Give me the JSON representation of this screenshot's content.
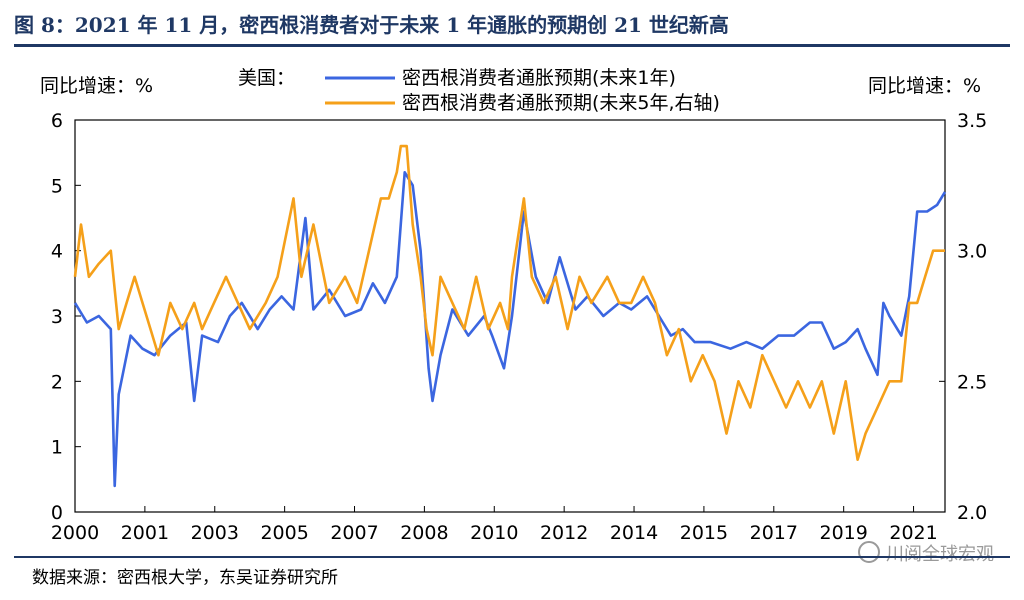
{
  "title": "图 8：2021 年 11 月，密西根消费者对于未来 1 年通胀的预期创 21 世纪新高",
  "source": "数据来源：密西根大学，东吴证券研究所",
  "watermark": "川阅全球宏观",
  "chart_data": {
    "type": "line",
    "region_label": "美国：",
    "left_axis_label": "同比增速：%",
    "right_axis_label": "同比增速：%",
    "y_left": {
      "ylim": [
        0,
        6
      ],
      "ticks": [
        "0",
        "1",
        "2",
        "3",
        "4",
        "5",
        "6"
      ]
    },
    "y_right": {
      "ylim": [
        2.0,
        3.5
      ],
      "ticks": [
        "2.0",
        "2.5",
        "3.0",
        "3.5"
      ]
    },
    "x_ticks": [
      "2000",
      "2001",
      "2003",
      "2005",
      "2007",
      "2008",
      "2010",
      "2012",
      "2014",
      "2015",
      "2017",
      "2019",
      "2021"
    ],
    "x_range": [
      2000.0,
      2021.9
    ],
    "grid": false,
    "legend": "top-center",
    "series": [
      {
        "name": "密西根消费者通胀预期(未来1年)",
        "axis": "left",
        "color": "#3b66e0",
        "points": [
          [
            2000.0,
            3.2
          ],
          [
            2000.3,
            2.9
          ],
          [
            2000.6,
            3.0
          ],
          [
            2000.9,
            2.8
          ],
          [
            2001.0,
            0.4
          ],
          [
            2001.1,
            1.8
          ],
          [
            2001.4,
            2.7
          ],
          [
            2001.7,
            2.5
          ],
          [
            2002.0,
            2.4
          ],
          [
            2002.4,
            2.7
          ],
          [
            2002.8,
            2.9
          ],
          [
            2003.0,
            1.7
          ],
          [
            2003.2,
            2.7
          ],
          [
            2003.6,
            2.6
          ],
          [
            2003.9,
            3.0
          ],
          [
            2004.2,
            3.2
          ],
          [
            2004.6,
            2.8
          ],
          [
            2004.9,
            3.1
          ],
          [
            2005.2,
            3.3
          ],
          [
            2005.5,
            3.1
          ],
          [
            2005.8,
            4.5
          ],
          [
            2006.0,
            3.1
          ],
          [
            2006.4,
            3.4
          ],
          [
            2006.8,
            3.0
          ],
          [
            2007.2,
            3.1
          ],
          [
            2007.5,
            3.5
          ],
          [
            2007.8,
            3.2
          ],
          [
            2008.1,
            3.6
          ],
          [
            2008.3,
            5.2
          ],
          [
            2008.5,
            5.0
          ],
          [
            2008.7,
            4.0
          ],
          [
            2008.9,
            2.2
          ],
          [
            2009.0,
            1.7
          ],
          [
            2009.2,
            2.4
          ],
          [
            2009.5,
            3.1
          ],
          [
            2009.9,
            2.7
          ],
          [
            2010.3,
            3.0
          ],
          [
            2010.5,
            2.7
          ],
          [
            2010.8,
            2.2
          ],
          [
            2011.0,
            3.0
          ],
          [
            2011.3,
            4.6
          ],
          [
            2011.6,
            3.6
          ],
          [
            2011.9,
            3.2
          ],
          [
            2012.2,
            3.9
          ],
          [
            2012.6,
            3.1
          ],
          [
            2012.9,
            3.3
          ],
          [
            2013.3,
            3.0
          ],
          [
            2013.7,
            3.2
          ],
          [
            2014.0,
            3.1
          ],
          [
            2014.4,
            3.3
          ],
          [
            2014.8,
            2.9
          ],
          [
            2015.0,
            2.7
          ],
          [
            2015.3,
            2.8
          ],
          [
            2015.6,
            2.6
          ],
          [
            2016.0,
            2.6
          ],
          [
            2016.5,
            2.5
          ],
          [
            2016.9,
            2.6
          ],
          [
            2017.3,
            2.5
          ],
          [
            2017.7,
            2.7
          ],
          [
            2018.1,
            2.7
          ],
          [
            2018.5,
            2.9
          ],
          [
            2018.8,
            2.9
          ],
          [
            2019.1,
            2.5
          ],
          [
            2019.4,
            2.6
          ],
          [
            2019.7,
            2.8
          ],
          [
            2019.9,
            2.5
          ],
          [
            2020.2,
            2.1
          ],
          [
            2020.35,
            3.2
          ],
          [
            2020.5,
            3.0
          ],
          [
            2020.8,
            2.7
          ],
          [
            2021.0,
            3.3
          ],
          [
            2021.2,
            4.6
          ],
          [
            2021.45,
            4.6
          ],
          [
            2021.7,
            4.7
          ],
          [
            2021.9,
            4.9
          ]
        ]
      },
      {
        "name": "密西根消费者通胀预期(未来5年,右轴)",
        "axis": "right",
        "color": "#f5a01a",
        "points": [
          [
            2000.0,
            2.9
          ],
          [
            2000.15,
            3.1
          ],
          [
            2000.35,
            2.9
          ],
          [
            2000.6,
            2.95
          ],
          [
            2000.9,
            3.0
          ],
          [
            2001.1,
            2.7
          ],
          [
            2001.3,
            2.8
          ],
          [
            2001.5,
            2.9
          ],
          [
            2001.7,
            2.8
          ],
          [
            2001.9,
            2.7
          ],
          [
            2002.1,
            2.6
          ],
          [
            2002.4,
            2.8
          ],
          [
            2002.7,
            2.7
          ],
          [
            2003.0,
            2.8
          ],
          [
            2003.2,
            2.7
          ],
          [
            2003.5,
            2.8
          ],
          [
            2003.8,
            2.9
          ],
          [
            2004.1,
            2.8
          ],
          [
            2004.4,
            2.7
          ],
          [
            2004.8,
            2.8
          ],
          [
            2005.1,
            2.9
          ],
          [
            2005.5,
            3.2
          ],
          [
            2005.7,
            2.9
          ],
          [
            2006.0,
            3.1
          ],
          [
            2006.4,
            2.8
          ],
          [
            2006.8,
            2.9
          ],
          [
            2007.1,
            2.8
          ],
          [
            2007.4,
            3.0
          ],
          [
            2007.7,
            3.2
          ],
          [
            2007.9,
            3.2
          ],
          [
            2008.1,
            3.3
          ],
          [
            2008.2,
            3.4
          ],
          [
            2008.35,
            3.4
          ],
          [
            2008.5,
            3.1
          ],
          [
            2008.7,
            2.9
          ],
          [
            2008.85,
            2.7
          ],
          [
            2009.0,
            2.6
          ],
          [
            2009.2,
            2.9
          ],
          [
            2009.5,
            2.8
          ],
          [
            2009.8,
            2.7
          ],
          [
            2010.1,
            2.9
          ],
          [
            2010.4,
            2.7
          ],
          [
            2010.7,
            2.8
          ],
          [
            2010.9,
            2.7
          ],
          [
            2011.0,
            2.9
          ],
          [
            2011.3,
            3.2
          ],
          [
            2011.5,
            2.9
          ],
          [
            2011.8,
            2.8
          ],
          [
            2012.1,
            2.9
          ],
          [
            2012.4,
            2.7
          ],
          [
            2012.7,
            2.9
          ],
          [
            2013.0,
            2.8
          ],
          [
            2013.4,
            2.9
          ],
          [
            2013.7,
            2.8
          ],
          [
            2014.0,
            2.8
          ],
          [
            2014.3,
            2.9
          ],
          [
            2014.6,
            2.8
          ],
          [
            2014.9,
            2.6
          ],
          [
            2015.2,
            2.7
          ],
          [
            2015.5,
            2.5
          ],
          [
            2015.8,
            2.6
          ],
          [
            2016.1,
            2.5
          ],
          [
            2016.4,
            2.3
          ],
          [
            2016.7,
            2.5
          ],
          [
            2017.0,
            2.4
          ],
          [
            2017.3,
            2.6
          ],
          [
            2017.6,
            2.5
          ],
          [
            2017.9,
            2.4
          ],
          [
            2018.2,
            2.5
          ],
          [
            2018.5,
            2.4
          ],
          [
            2018.8,
            2.5
          ],
          [
            2019.1,
            2.3
          ],
          [
            2019.4,
            2.5
          ],
          [
            2019.7,
            2.2
          ],
          [
            2019.9,
            2.3
          ],
          [
            2020.2,
            2.4
          ],
          [
            2020.5,
            2.5
          ],
          [
            2020.8,
            2.5
          ],
          [
            2021.0,
            2.8
          ],
          [
            2021.2,
            2.8
          ],
          [
            2021.4,
            2.9
          ],
          [
            2021.6,
            3.0
          ],
          [
            2021.9,
            3.0
          ]
        ]
      }
    ]
  }
}
